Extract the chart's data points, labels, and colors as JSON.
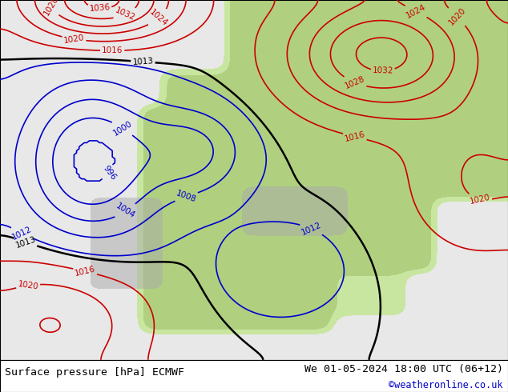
{
  "title_left": "Surface pressure [hPa] ECMWF",
  "title_right": "We 01-05-2024 18:00 UTC (06+12)",
  "copyright": "©weatheronline.co.uk",
  "copyright_color": "#0000cc",
  "text_color": "#000000",
  "bg_color": "#d8d8d8",
  "land_color_light": "#c8e6a0",
  "land_color_dark": "#b0d080",
  "sea_color": "#e8e8e8",
  "contour_below_color": "#0000cc",
  "contour_above_color": "#cc0000",
  "contour_base_color": "#000000",
  "contour_base_value": 1013,
  "contour_interval": 4,
  "pressure_min": 996,
  "pressure_max": 1040,
  "figwidth": 6.34,
  "figheight": 4.9,
  "dpi": 100,
  "bottom_bar_height": 0.082,
  "bottom_bar_color": "#ffffff",
  "label_fontsize": 7.5,
  "title_fontsize": 9.5
}
